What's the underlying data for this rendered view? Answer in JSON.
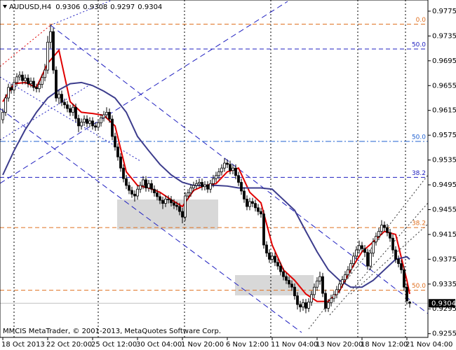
{
  "chart_data": {
    "type": "candlestick",
    "title": "AUDUSD,H4",
    "watermark": "MMCIS MetaTrader, © 2001-2013, MetaQuotes Software Corp.",
    "categories": [
      "18 Oct 2013",
      null,
      null,
      null,
      null,
      null,
      null,
      null,
      null,
      null,
      null,
      null,
      null,
      null,
      null,
      null,
      "22 Oct 20:00",
      null,
      null,
      null,
      null,
      null,
      null,
      null,
      null,
      null,
      null,
      null,
      null,
      null,
      null,
      null,
      "25 Oct 12:00",
      null,
      null,
      null,
      null,
      null,
      null,
      null,
      null,
      null,
      null,
      null,
      null,
      null,
      null,
      null,
      "30 Oct 04:00",
      null,
      null,
      null,
      null,
      null,
      null,
      null,
      null,
      null,
      null,
      null,
      null,
      null,
      null,
      null,
      "1 Nov 20:00",
      null,
      null,
      null,
      null,
      null,
      null,
      null,
      null,
      null,
      null,
      null,
      null,
      null,
      null,
      null,
      "6 Nov 12:00",
      null,
      null,
      null,
      null,
      null,
      null,
      null,
      null,
      null,
      null,
      null,
      null,
      null,
      null,
      null,
      "11 Nov 04:00",
      null,
      null,
      null,
      null,
      null,
      null,
      null,
      null,
      null,
      null,
      null,
      null,
      null,
      null,
      null,
      "13 Nov 20:00",
      null,
      null,
      null,
      null,
      null,
      null,
      null,
      null,
      null,
      null,
      null,
      null,
      null,
      null,
      null,
      "18 Nov 12:00",
      null,
      null,
      null,
      null,
      null,
      null,
      null,
      null,
      null,
      null,
      null,
      null,
      null,
      null,
      null,
      "21 Nov 04:00",
      null
    ],
    "open": [
      0.96,
      0.9612,
      0.9635,
      0.9652,
      0.9648,
      0.966,
      0.9669,
      0.9672,
      0.9663,
      0.9667,
      0.9658,
      0.9662,
      0.9652,
      0.965,
      0.9657,
      0.9668,
      0.968,
      0.9725,
      0.9742,
      0.968,
      0.9635,
      0.9641,
      0.9628,
      0.9624,
      0.9618,
      0.9612,
      0.962,
      0.9602,
      0.959,
      0.9596,
      0.9601,
      0.9594,
      0.9598,
      0.959,
      0.9588,
      0.9595,
      0.9603,
      0.9608,
      0.9612,
      0.9601,
      0.9573,
      0.9556,
      0.954,
      0.9522,
      0.9505,
      0.9494,
      0.9486,
      0.948,
      0.9477,
      0.9488,
      0.9494,
      0.9503,
      0.949,
      0.9497,
      0.9488,
      0.9482,
      0.9476,
      0.947,
      0.9465,
      0.9472,
      0.9471,
      0.9466,
      0.9462,
      0.946,
      0.9452,
      0.9443,
      0.9477,
      0.9482,
      0.949,
      0.9494,
      0.9497,
      0.9499,
      0.9492,
      0.9495,
      0.9488,
      0.9497,
      0.9505,
      0.951,
      0.9516,
      0.9522,
      0.953,
      0.9528,
      0.9518,
      0.9522,
      0.951,
      0.9499,
      0.9485,
      0.9472,
      0.946,
      0.9468,
      0.9465,
      0.9458,
      0.9452,
      0.9448,
      0.9398,
      0.9385,
      0.9375,
      0.938,
      0.937,
      0.9364,
      0.9355,
      0.9347,
      0.9341,
      0.9335,
      0.933,
      0.9316,
      0.9302,
      0.9298,
      0.9305,
      0.9296,
      0.9306,
      0.9318,
      0.933,
      0.934,
      0.9347,
      0.932,
      0.9296,
      0.9305,
      0.9312,
      0.9318,
      0.9326,
      0.9335,
      0.9342,
      0.935,
      0.9358,
      0.9368,
      0.938,
      0.939,
      0.9397,
      0.9392,
      0.9386,
      0.9364,
      0.9385,
      0.9403,
      0.9412,
      0.942,
      0.943,
      0.9426,
      0.9418,
      0.9409,
      0.939,
      0.9375,
      0.9368,
      0.9358,
      0.933,
      0.9306
    ],
    "high": [
      0.9618,
      0.9641,
      0.9658,
      0.9658,
      0.9666,
      0.9675,
      0.9678,
      0.9678,
      0.9673,
      0.9673,
      0.9668,
      0.9668,
      0.9658,
      0.9663,
      0.9674,
      0.969,
      0.9735,
      0.9753,
      0.9748,
      0.9686,
      0.9647,
      0.9647,
      0.9634,
      0.963,
      0.9624,
      0.9626,
      0.9626,
      0.9608,
      0.9602,
      0.9607,
      0.9607,
      0.9604,
      0.9604,
      0.9596,
      0.9601,
      0.9609,
      0.9614,
      0.962,
      0.9618,
      0.9607,
      0.9579,
      0.9562,
      0.9546,
      0.9528,
      0.9511,
      0.95,
      0.9492,
      0.9486,
      0.9494,
      0.95,
      0.9509,
      0.9509,
      0.9503,
      0.9503,
      0.9494,
      0.9488,
      0.9482,
      0.9476,
      0.9478,
      0.9478,
      0.9477,
      0.9472,
      0.9468,
      0.9466,
      0.9458,
      0.9483,
      0.9488,
      0.9496,
      0.95,
      0.9503,
      0.9505,
      0.9505,
      0.9501,
      0.9501,
      0.9503,
      0.9511,
      0.9516,
      0.9522,
      0.9528,
      0.9538,
      0.9536,
      0.9534,
      0.9528,
      0.9528,
      0.9516,
      0.9505,
      0.9491,
      0.9478,
      0.9474,
      0.9474,
      0.9471,
      0.9464,
      0.9458,
      0.9454,
      0.9404,
      0.9391,
      0.9386,
      0.9386,
      0.9376,
      0.937,
      0.9361,
      0.9353,
      0.9347,
      0.9341,
      0.9336,
      0.9322,
      0.9308,
      0.9311,
      0.9311,
      0.9312,
      0.9324,
      0.9336,
      0.9346,
      0.9355,
      0.9353,
      0.9326,
      0.9311,
      0.9318,
      0.9324,
      0.9332,
      0.9341,
      0.9348,
      0.9356,
      0.9364,
      0.9374,
      0.9386,
      0.9396,
      0.9405,
      0.9403,
      0.9398,
      0.9392,
      0.9391,
      0.9409,
      0.9418,
      0.9426,
      0.9438,
      0.9436,
      0.9432,
      0.9424,
      0.9415,
      0.9396,
      0.9381,
      0.9374,
      0.9364,
      0.9336,
      0.9308
    ],
    "low": [
      0.9594,
      0.9606,
      0.9629,
      0.9642,
      0.9642,
      0.9654,
      0.9663,
      0.9657,
      0.9657,
      0.9652,
      0.9652,
      0.9646,
      0.9644,
      0.9644,
      0.9651,
      0.9662,
      0.9674,
      0.9715,
      0.9674,
      0.9629,
      0.9625,
      0.9622,
      0.9618,
      0.9612,
      0.9606,
      0.9606,
      0.9596,
      0.958,
      0.9584,
      0.959,
      0.9588,
      0.9588,
      0.9584,
      0.9582,
      0.9582,
      0.9589,
      0.9597,
      0.9602,
      0.9595,
      0.9567,
      0.955,
      0.9534,
      0.9516,
      0.9499,
      0.9488,
      0.948,
      0.9474,
      0.9468,
      0.9471,
      0.9482,
      0.9488,
      0.9484,
      0.9484,
      0.9482,
      0.9476,
      0.947,
      0.9464,
      0.9456,
      0.9459,
      0.9465,
      0.946,
      0.9456,
      0.9454,
      0.9446,
      0.9433,
      0.9437,
      0.9471,
      0.9476,
      0.9484,
      0.9488,
      0.9491,
      0.9486,
      0.9486,
      0.9482,
      0.9482,
      0.9491,
      0.9499,
      0.9504,
      0.951,
      0.9516,
      0.9522,
      0.9512,
      0.9512,
      0.9504,
      0.9493,
      0.9479,
      0.9466,
      0.9454,
      0.9454,
      0.9459,
      0.9452,
      0.9446,
      0.9442,
      0.9392,
      0.9379,
      0.9369,
      0.9369,
      0.9364,
      0.9358,
      0.9349,
      0.9341,
      0.9335,
      0.9329,
      0.9324,
      0.931,
      0.9294,
      0.929,
      0.9292,
      0.9288,
      0.929,
      0.93,
      0.9312,
      0.9324,
      0.9334,
      0.9314,
      0.929,
      0.929,
      0.9299,
      0.9306,
      0.9312,
      0.932,
      0.9329,
      0.9336,
      0.9344,
      0.9352,
      0.9362,
      0.9374,
      0.9384,
      0.9386,
      0.938,
      0.9358,
      0.9358,
      0.9379,
      0.9397,
      0.9406,
      0.9414,
      0.942,
      0.9412,
      0.9403,
      0.9384,
      0.9369,
      0.9362,
      0.9352,
      0.9324,
      0.9302,
      0.9297
    ],
    "close": [
      0.9612,
      0.9635,
      0.9652,
      0.9648,
      0.966,
      0.9669,
      0.9672,
      0.9663,
      0.9667,
      0.9658,
      0.9662,
      0.9652,
      0.965,
      0.9657,
      0.9668,
      0.968,
      0.9725,
      0.9742,
      0.968,
      0.9635,
      0.9641,
      0.9628,
      0.9624,
      0.9618,
      0.9612,
      0.962,
      0.9602,
      0.959,
      0.9596,
      0.9601,
      0.9594,
      0.9598,
      0.959,
      0.9588,
      0.9595,
      0.9603,
      0.9608,
      0.9612,
      0.9601,
      0.9573,
      0.9556,
      0.954,
      0.9522,
      0.9505,
      0.9494,
      0.9486,
      0.948,
      0.9477,
      0.9488,
      0.9494,
      0.9503,
      0.949,
      0.9497,
      0.9488,
      0.9482,
      0.9476,
      0.947,
      0.9465,
      0.9472,
      0.9471,
      0.9466,
      0.9462,
      0.946,
      0.9452,
      0.9443,
      0.9477,
      0.9482,
      0.949,
      0.9494,
      0.9497,
      0.9499,
      0.9492,
      0.9495,
      0.9488,
      0.9497,
      0.9505,
      0.951,
      0.9516,
      0.9522,
      0.953,
      0.9528,
      0.9518,
      0.9522,
      0.951,
      0.9499,
      0.9485,
      0.9472,
      0.946,
      0.9468,
      0.9465,
      0.9458,
      0.9452,
      0.9448,
      0.9398,
      0.9385,
      0.9375,
      0.938,
      0.937,
      0.9364,
      0.9355,
      0.9347,
      0.9341,
      0.9335,
      0.933,
      0.9316,
      0.9302,
      0.9298,
      0.9305,
      0.9296,
      0.9306,
      0.9318,
      0.933,
      0.934,
      0.9347,
      0.932,
      0.9296,
      0.9305,
      0.9312,
      0.9318,
      0.9326,
      0.9335,
      0.9342,
      0.935,
      0.9358,
      0.9368,
      0.938,
      0.939,
      0.9397,
      0.9392,
      0.9386,
      0.9364,
      0.9385,
      0.9403,
      0.9412,
      0.942,
      0.943,
      0.9426,
      0.9418,
      0.9409,
      0.939,
      0.9375,
      0.9368,
      0.9358,
      0.933,
      0.9308,
      0.9304
    ],
    "bull_color": "#ffffff",
    "bear_color": "#000000",
    "series": [
      {
        "color": "#e00000",
        "x": [
          0,
          4,
          8,
          12,
          16,
          20,
          24,
          28,
          32,
          36,
          40,
          44,
          48,
          52,
          56,
          60,
          64,
          68,
          72,
          76,
          80,
          84,
          88,
          92,
          96,
          100,
          104,
          108,
          112,
          116,
          120,
          124,
          128,
          132,
          136,
          140,
          144,
          145
        ],
        "values": [
          0.9629,
          0.9658,
          0.966,
          0.9652,
          0.9691,
          0.9712,
          0.9629,
          0.9612,
          0.961,
          0.9607,
          0.959,
          0.9516,
          0.9494,
          0.949,
          0.9483,
          0.9471,
          0.946,
          0.9486,
          0.9494,
          0.9497,
          0.9516,
          0.9522,
          0.9483,
          0.9466,
          0.9398,
          0.9358,
          0.9341,
          0.9319,
          0.9307,
          0.9307,
          0.9324,
          0.9358,
          0.9387,
          0.9403,
          0.942,
          0.9415,
          0.9341,
          0.9319
        ]
      },
      {
        "color": "#3c3c8c",
        "x": [
          0,
          4,
          8,
          12,
          16,
          20,
          24,
          28,
          32,
          36,
          40,
          44,
          48,
          52,
          56,
          60,
          64,
          68,
          72,
          76,
          80,
          84,
          88,
          92,
          96,
          100,
          104,
          108,
          112,
          116,
          120,
          124,
          128,
          132,
          136,
          140,
          144,
          145
        ],
        "values": [
          0.9511,
          0.955,
          0.9584,
          0.9612,
          0.9635,
          0.9648,
          0.9658,
          0.966,
          0.9655,
          0.9646,
          0.9635,
          0.9612,
          0.9573,
          0.955,
          0.9528,
          0.9511,
          0.9499,
          0.9494,
          0.9494,
          0.9494,
          0.9493,
          0.949,
          0.949,
          0.949,
          0.9488,
          0.9471,
          0.9454,
          0.942,
          0.9387,
          0.9358,
          0.9341,
          0.933,
          0.933,
          0.9341,
          0.9358,
          0.9375,
          0.9379,
          0.9375
        ]
      }
    ],
    "levels": [
      {
        "value": 0.9754,
        "label": "0.0",
        "color": "#e07020",
        "dash": "6 4"
      },
      {
        "value": 0.9714,
        "label": "50.0",
        "color": "#2020c0",
        "dash": "6 4"
      },
      {
        "value": 0.9565,
        "label": "50.0",
        "color": "#2060d0",
        "dash": "8 3 2 3"
      },
      {
        "value": 0.9507,
        "label": "38.2",
        "color": "#2020c0",
        "dash": "6 4"
      },
      {
        "value": 0.9426,
        "label": "38.2",
        "color": "#e07020",
        "dash": "6 4"
      },
      {
        "value": 0.9325,
        "label": "50.0",
        "color": "#e07020",
        "dash": "6 4"
      }
    ],
    "ylim": [
      0.9249,
      0.9793
    ],
    "yticks": [
      0.9775,
      0.9735,
      0.9695,
      0.9655,
      0.9615,
      0.9575,
      0.9535,
      0.9495,
      0.9455,
      0.9415,
      0.9375,
      0.9335,
      0.9295,
      0.9255
    ]
  }
}
